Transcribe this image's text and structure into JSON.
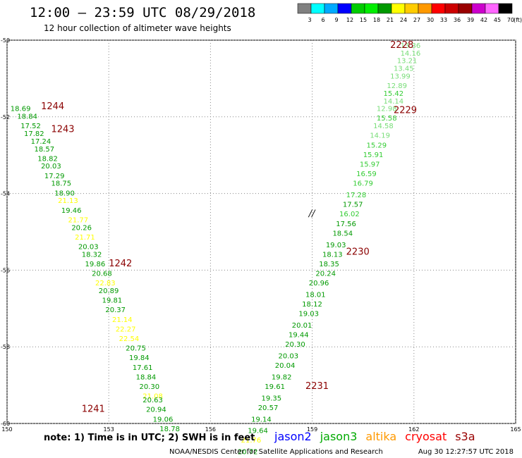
{
  "header": {
    "title": "12:00 – 23:59 UTC 08/29/2018",
    "subtitle": "12 hour collection of altimeter wave heights"
  },
  "colorbar": {
    "colors": [
      "#808080",
      "#00ffff",
      "#00aaff",
      "#0000ff",
      "#00cc00",
      "#00ee00",
      "#009900",
      "#ffff00",
      "#ffcc00",
      "#ff9900",
      "#ff0000",
      "#cc0000",
      "#990000",
      "#cc00cc",
      "#ff66ff",
      "#000000"
    ],
    "labels": [
      "3",
      "6",
      "9",
      "12",
      "15",
      "18",
      "21",
      "24",
      "27",
      "30",
      "33",
      "36",
      "39",
      "42",
      "45",
      "70",
      "(ft)"
    ]
  },
  "chart_data": {
    "type": "scatter",
    "xlim": [
      150,
      165
    ],
    "ylim": [
      -60,
      -50
    ],
    "x_ticks": [
      150,
      153,
      156,
      159,
      162,
      165
    ],
    "y_ticks": [
      -50,
      -52,
      -54,
      -56,
      -58,
      -60
    ],
    "x_tick_labels": [
      "150",
      "153",
      "156",
      "159",
      "162",
      "165"
    ],
    "y_tick_labels": [
      "-50",
      "-52",
      "-54",
      "-56",
      "-58",
      "-60"
    ],
    "grid": true,
    "annotations": [
      {
        "text": "//",
        "x": 158.9,
        "y": -54.6
      }
    ],
    "passes": [
      {
        "time": "1244",
        "x": 151.0,
        "y": -51.8
      },
      {
        "time": "1243",
        "x": 151.3,
        "y": -52.4
      },
      {
        "time": "1242",
        "x": 153.0,
        "y": -55.9
      },
      {
        "time": "1241",
        "x": 152.2,
        "y": -59.7
      },
      {
        "time": "2228",
        "x": 161.3,
        "y": -50.2
      },
      {
        "time": "2229",
        "x": 161.4,
        "y": -51.9
      },
      {
        "time": "2230",
        "x": 160.0,
        "y": -55.6
      },
      {
        "time": "2231",
        "x": 158.8,
        "y": -59.1
      }
    ],
    "series": [
      {
        "values": [
          {
            "x": 150.1,
            "y": -51.85,
            "v": "18.69",
            "c": "#009900"
          },
          {
            "x": 150.3,
            "y": -52.05,
            "v": "18.84",
            "c": "#009900"
          },
          {
            "x": 150.4,
            "y": -52.3,
            "v": "17.52",
            "c": "#009900"
          },
          {
            "x": 150.5,
            "y": -52.5,
            "v": "17.82",
            "c": "#009900"
          },
          {
            "x": 150.7,
            "y": -52.7,
            "v": "17.24",
            "c": "#009900"
          },
          {
            "x": 150.8,
            "y": -52.9,
            "v": "18.57",
            "c": "#009900"
          },
          {
            "x": 150.9,
            "y": -53.15,
            "v": "18.82",
            "c": "#009900"
          },
          {
            "x": 151.0,
            "y": -53.35,
            "v": "20.03",
            "c": "#009900"
          },
          {
            "x": 151.1,
            "y": -53.6,
            "v": "17.29",
            "c": "#009900"
          },
          {
            "x": 151.3,
            "y": -53.8,
            "v": "18.75",
            "c": "#009900"
          },
          {
            "x": 151.4,
            "y": -54.05,
            "v": "18.90",
            "c": "#009900"
          },
          {
            "x": 151.5,
            "y": -54.25,
            "v": "21.13",
            "c": "#ffff00"
          },
          {
            "x": 151.6,
            "y": -54.5,
            "v": "19.46",
            "c": "#009900"
          },
          {
            "x": 151.8,
            "y": -54.75,
            "v": "21.77",
            "c": "#ffff00"
          },
          {
            "x": 151.9,
            "y": -54.95,
            "v": "20.26",
            "c": "#009900"
          },
          {
            "x": 152.0,
            "y": -55.2,
            "v": "21.71",
            "c": "#ffff00"
          },
          {
            "x": 152.1,
            "y": -55.45,
            "v": "20.03",
            "c": "#009900"
          },
          {
            "x": 152.2,
            "y": -55.65,
            "v": "18.32",
            "c": "#009900"
          },
          {
            "x": 152.3,
            "y": -55.9,
            "v": "19.86",
            "c": "#009900"
          },
          {
            "x": 152.5,
            "y": -56.15,
            "v": "20.68",
            "c": "#009900"
          },
          {
            "x": 152.6,
            "y": -56.4,
            "v": "22.83",
            "c": "#ffff00"
          },
          {
            "x": 152.7,
            "y": -56.6,
            "v": "20.89",
            "c": "#009900"
          },
          {
            "x": 152.8,
            "y": -56.85,
            "v": "19.81",
            "c": "#009900"
          },
          {
            "x": 152.9,
            "y": -57.1,
            "v": "20.37",
            "c": "#009900"
          },
          {
            "x": 153.1,
            "y": -57.35,
            "v": "21.14",
            "c": "#ffff00"
          },
          {
            "x": 153.2,
            "y": -57.6,
            "v": "22.27",
            "c": "#ffff00"
          },
          {
            "x": 153.3,
            "y": -57.85,
            "v": "22.54",
            "c": "#ffff00"
          },
          {
            "x": 153.5,
            "y": -58.1,
            "v": "20.75",
            "c": "#009900"
          },
          {
            "x": 153.6,
            "y": -58.35,
            "v": "19.84",
            "c": "#009900"
          },
          {
            "x": 153.7,
            "y": -58.6,
            "v": "17.61",
            "c": "#009900"
          },
          {
            "x": 153.8,
            "y": -58.85,
            "v": "18.84",
            "c": "#009900"
          },
          {
            "x": 153.9,
            "y": -59.1,
            "v": "20.30",
            "c": "#009900"
          },
          {
            "x": 154.0,
            "y": -59.35,
            "v": "21.08",
            "c": "#ffff00"
          },
          {
            "x": 154.0,
            "y": -59.45,
            "v": "20.63",
            "c": "#009900"
          },
          {
            "x": 154.1,
            "y": -59.7,
            "v": "20.94",
            "c": "#009900"
          },
          {
            "x": 154.3,
            "y": -59.95,
            "v": "19.06",
            "c": "#009900"
          },
          {
            "x": 154.5,
            "y": -60.2,
            "v": "18.78",
            "c": "#009900"
          }
        ]
      },
      {
        "values": [
          {
            "x": 161.6,
            "y": -50.2,
            "v": "13.36",
            "c": "#77dd77"
          },
          {
            "x": 161.6,
            "y": -50.4,
            "v": "14.16",
            "c": "#77dd77"
          },
          {
            "x": 161.5,
            "y": -50.6,
            "v": "13.21",
            "c": "#77dd77"
          },
          {
            "x": 161.4,
            "y": -50.8,
            "v": "13.45",
            "c": "#77dd77"
          },
          {
            "x": 161.3,
            "y": -51.0,
            "v": "13.99",
            "c": "#77dd77"
          },
          {
            "x": 161.2,
            "y": -51.25,
            "v": "12.89",
            "c": "#77dd77"
          },
          {
            "x": 161.1,
            "y": -51.45,
            "v": "15.42",
            "c": "#33cc33"
          },
          {
            "x": 161.1,
            "y": -51.65,
            "v": "14.14",
            "c": "#77dd77"
          },
          {
            "x": 160.9,
            "y": -51.85,
            "v": "12.98",
            "c": "#77dd77"
          },
          {
            "x": 160.9,
            "y": -52.1,
            "v": "15.58",
            "c": "#33cc33"
          },
          {
            "x": 160.8,
            "y": -52.3,
            "v": "14.58",
            "c": "#77dd77"
          },
          {
            "x": 160.7,
            "y": -52.55,
            "v": "14.19",
            "c": "#77dd77"
          },
          {
            "x": 160.6,
            "y": -52.8,
            "v": "15.29",
            "c": "#33cc33"
          },
          {
            "x": 160.5,
            "y": -53.05,
            "v": "15.91",
            "c": "#33cc33"
          },
          {
            "x": 160.4,
            "y": -53.3,
            "v": "15.97",
            "c": "#33cc33"
          },
          {
            "x": 160.3,
            "y": -53.55,
            "v": "16.59",
            "c": "#33cc33"
          },
          {
            "x": 160.2,
            "y": -53.8,
            "v": "16.79",
            "c": "#33cc33"
          },
          {
            "x": 160.0,
            "y": -54.1,
            "v": "17.28",
            "c": "#33cc33"
          },
          {
            "x": 159.9,
            "y": -54.35,
            "v": "17.57",
            "c": "#009900"
          },
          {
            "x": 159.8,
            "y": -54.6,
            "v": "16.02",
            "c": "#33cc33"
          },
          {
            "x": 159.7,
            "y": -54.85,
            "v": "17.56",
            "c": "#009900"
          },
          {
            "x": 159.6,
            "y": -55.1,
            "v": "18.54",
            "c": "#009900"
          },
          {
            "x": 159.4,
            "y": -55.4,
            "v": "19.03",
            "c": "#009900"
          },
          {
            "x": 159.3,
            "y": -55.65,
            "v": "18.13",
            "c": "#009900"
          },
          {
            "x": 159.2,
            "y": -55.9,
            "v": "18.35",
            "c": "#009900"
          },
          {
            "x": 159.1,
            "y": -56.15,
            "v": "20.24",
            "c": "#009900"
          },
          {
            "x": 158.9,
            "y": -56.4,
            "v": "20.96",
            "c": "#009900"
          },
          {
            "x": 158.8,
            "y": -56.7,
            "v": "18.01",
            "c": "#009900"
          },
          {
            "x": 158.7,
            "y": -56.95,
            "v": "18.12",
            "c": "#009900"
          },
          {
            "x": 158.6,
            "y": -57.2,
            "v": "19.03",
            "c": "#009900"
          },
          {
            "x": 158.4,
            "y": -57.5,
            "v": "20.01",
            "c": "#009900"
          },
          {
            "x": 158.3,
            "y": -57.75,
            "v": "19.44",
            "c": "#009900"
          },
          {
            "x": 158.2,
            "y": -58.0,
            "v": "20.30",
            "c": "#009900"
          },
          {
            "x": 158.0,
            "y": -58.3,
            "v": "20.03",
            "c": "#009900"
          },
          {
            "x": 157.9,
            "y": -58.55,
            "v": "20.04",
            "c": "#009900"
          },
          {
            "x": 157.8,
            "y": -58.85,
            "v": "19.82",
            "c": "#009900"
          },
          {
            "x": 157.6,
            "y": -59.1,
            "v": "19.61",
            "c": "#009900"
          },
          {
            "x": 157.5,
            "y": -59.4,
            "v": "19.35",
            "c": "#009900"
          },
          {
            "x": 157.4,
            "y": -59.65,
            "v": "20.57",
            "c": "#009900"
          },
          {
            "x": 157.2,
            "y": -59.95,
            "v": "19.14",
            "c": "#009900"
          },
          {
            "x": 157.1,
            "y": -60.25,
            "v": "19.64",
            "c": "#009900"
          },
          {
            "x": 156.9,
            "y": -60.5,
            "v": "21.76",
            "c": "#ffff00"
          },
          {
            "x": 156.8,
            "y": -60.8,
            "v": "20.72",
            "c": "#009900"
          }
        ]
      }
    ]
  },
  "footer": {
    "note": "note: 1) Time is in UTC; 2) SWH is in feet",
    "satellites": [
      {
        "name": "jason2",
        "color": "#0000ff"
      },
      {
        "name": "jason3",
        "color": "#00aa00"
      },
      {
        "name": "altika",
        "color": "#ff9900"
      },
      {
        "name": "cryosat",
        "color": "#ff0000"
      },
      {
        "name": "s3a",
        "color": "#990000"
      }
    ],
    "credit": "NOAA/NESDIS Center for Satellite Applications and Research",
    "timestamp": "Aug 30 12:27:57 UTC 2018"
  }
}
